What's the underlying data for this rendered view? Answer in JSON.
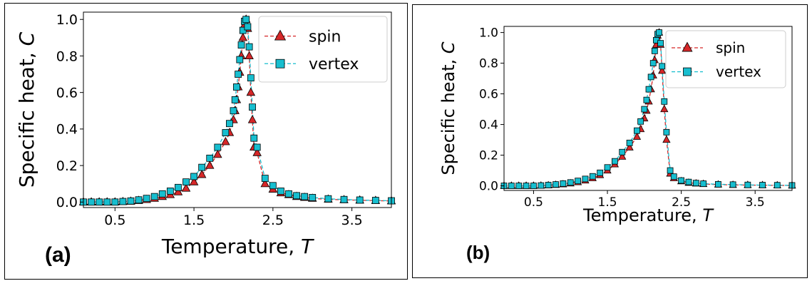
{
  "chart_data": [
    {
      "type": "line",
      "panel_label": "(a)",
      "xlabel": "Temperature, ",
      "xlabel_var": "T",
      "ylabel": "Specific heat, ",
      "ylabel_var": "C",
      "xlim": [
        0.1,
        4.0
      ],
      "ylim": [
        -0.03,
        1.04
      ],
      "xticks": [
        0.5,
        1.5,
        2.5,
        3.5
      ],
      "xtick_labels": [
        "0.5",
        "1.5",
        "2.5",
        "3.5"
      ],
      "yticks": [
        0.0,
        0.2,
        0.4,
        0.6,
        0.8,
        1.0
      ],
      "ytick_labels": [
        "0.0",
        "0.2",
        "0.4",
        "0.6",
        "0.8",
        "1.0"
      ],
      "grid": false,
      "legend_position": "top-right",
      "series": [
        {
          "name": "spin",
          "marker": "triangle",
          "color": "#d62728",
          "x": [
            0.1,
            0.2,
            0.3,
            0.4,
            0.5,
            0.6,
            0.7,
            0.8,
            0.9,
            1.0,
            1.1,
            1.2,
            1.3,
            1.4,
            1.5,
            1.6,
            1.7,
            1.8,
            1.9,
            1.95,
            2.0,
            2.02,
            2.04,
            2.06,
            2.08,
            2.1,
            2.12,
            2.14,
            2.16,
            2.18,
            2.2,
            2.22,
            2.24,
            2.26,
            2.3,
            2.4,
            2.5,
            2.6,
            2.7,
            2.8,
            2.9,
            3.0,
            3.2,
            3.4,
            3.6,
            3.8,
            4.0
          ],
          "y": [
            0.0,
            0.0,
            0.0,
            0.0,
            0.0,
            0.002,
            0.004,
            0.008,
            0.013,
            0.02,
            0.03,
            0.04,
            0.055,
            0.075,
            0.11,
            0.15,
            0.2,
            0.26,
            0.33,
            0.38,
            0.45,
            0.5,
            0.56,
            0.63,
            0.71,
            0.8,
            0.9,
            0.97,
            1.0,
            0.95,
            0.8,
            0.6,
            0.45,
            0.3,
            0.27,
            0.1,
            0.07,
            0.05,
            0.04,
            0.03,
            0.025,
            0.02,
            0.015,
            0.012,
            0.01,
            0.008,
            0.006
          ]
        },
        {
          "name": "vertex",
          "marker": "square",
          "color": "#17becf",
          "x": [
            0.1,
            0.2,
            0.3,
            0.4,
            0.5,
            0.6,
            0.7,
            0.8,
            0.9,
            1.0,
            1.1,
            1.2,
            1.3,
            1.4,
            1.5,
            1.6,
            1.7,
            1.8,
            1.9,
            1.95,
            2.0,
            2.02,
            2.04,
            2.06,
            2.08,
            2.1,
            2.12,
            2.14,
            2.16,
            2.18,
            2.2,
            2.22,
            2.24,
            2.26,
            2.3,
            2.4,
            2.5,
            2.6,
            2.7,
            2.8,
            2.9,
            3.0,
            3.2,
            3.4,
            3.6,
            3.8,
            4.0
          ],
          "y": [
            0.0,
            0.0,
            0.0,
            0.0,
            0.0,
            0.003,
            0.006,
            0.012,
            0.02,
            0.03,
            0.045,
            0.06,
            0.08,
            0.11,
            0.14,
            0.19,
            0.24,
            0.3,
            0.38,
            0.43,
            0.5,
            0.56,
            0.63,
            0.7,
            0.78,
            0.86,
            0.94,
            0.99,
            1.0,
            0.96,
            0.85,
            0.68,
            0.52,
            0.35,
            0.3,
            0.13,
            0.09,
            0.06,
            0.045,
            0.035,
            0.03,
            0.025,
            0.018,
            0.014,
            0.011,
            0.009,
            0.007
          ]
        }
      ]
    },
    {
      "type": "line",
      "panel_label": "(b)",
      "xlabel": "Temperature, ",
      "xlabel_var": "T",
      "ylabel": "Specific heat, ",
      "ylabel_var": "C",
      "xlim": [
        0.1,
        4.0
      ],
      "ylim": [
        -0.03,
        1.04
      ],
      "xticks": [
        0.5,
        1.5,
        2.5,
        3.5
      ],
      "xtick_labels": [
        "0.5",
        "1.5",
        "2.5",
        "3.5"
      ],
      "yticks": [
        0.0,
        0.2,
        0.4,
        0.6,
        0.8,
        1.0
      ],
      "ytick_labels": [
        "0.0",
        "0.2",
        "0.4",
        "0.6",
        "0.8",
        "1.0"
      ],
      "grid": false,
      "legend_position": "top-right",
      "series": [
        {
          "name": "spin",
          "marker": "triangle",
          "color": "#d62728",
          "x": [
            0.1,
            0.2,
            0.3,
            0.4,
            0.5,
            0.6,
            0.7,
            0.8,
            0.9,
            1.0,
            1.1,
            1.2,
            1.3,
            1.4,
            1.5,
            1.6,
            1.7,
            1.8,
            1.9,
            1.95,
            2.0,
            2.03,
            2.06,
            2.09,
            2.12,
            2.14,
            2.16,
            2.18,
            2.2,
            2.22,
            2.24,
            2.27,
            2.3,
            2.35,
            2.4,
            2.5,
            2.6,
            2.7,
            2.8,
            3.0,
            3.2,
            3.4,
            3.6,
            3.8,
            4.0
          ],
          "y": [
            0.0,
            0.0,
            0.0,
            0.0,
            0.0,
            0.001,
            0.003,
            0.006,
            0.01,
            0.016,
            0.024,
            0.035,
            0.05,
            0.07,
            0.1,
            0.14,
            0.19,
            0.25,
            0.32,
            0.37,
            0.44,
            0.49,
            0.55,
            0.63,
            0.72,
            0.82,
            0.92,
            0.98,
            1.0,
            0.92,
            0.75,
            0.5,
            0.3,
            0.08,
            0.05,
            0.03,
            0.02,
            0.015,
            0.012,
            0.008,
            0.006,
            0.005,
            0.004,
            0.003,
            0.002
          ]
        },
        {
          "name": "vertex",
          "marker": "square",
          "color": "#17becf",
          "x": [
            0.1,
            0.2,
            0.3,
            0.4,
            0.5,
            0.6,
            0.7,
            0.8,
            0.9,
            1.0,
            1.1,
            1.2,
            1.3,
            1.4,
            1.5,
            1.6,
            1.7,
            1.8,
            1.9,
            1.95,
            2.0,
            2.03,
            2.06,
            2.09,
            2.12,
            2.14,
            2.16,
            2.18,
            2.2,
            2.22,
            2.24,
            2.27,
            2.3,
            2.35,
            2.4,
            2.5,
            2.6,
            2.7,
            2.8,
            3.0,
            3.2,
            3.4,
            3.6,
            3.8,
            4.0
          ],
          "y": [
            0.0,
            0.0,
            0.0,
            0.0,
            0.0,
            0.002,
            0.005,
            0.009,
            0.015,
            0.022,
            0.032,
            0.045,
            0.062,
            0.085,
            0.12,
            0.16,
            0.22,
            0.28,
            0.36,
            0.42,
            0.5,
            0.56,
            0.63,
            0.71,
            0.8,
            0.88,
            0.95,
            0.99,
            1.0,
            0.93,
            0.78,
            0.55,
            0.35,
            0.1,
            0.06,
            0.035,
            0.025,
            0.018,
            0.014,
            0.01,
            0.008,
            0.006,
            0.005,
            0.004,
            0.003
          ]
        }
      ]
    }
  ]
}
